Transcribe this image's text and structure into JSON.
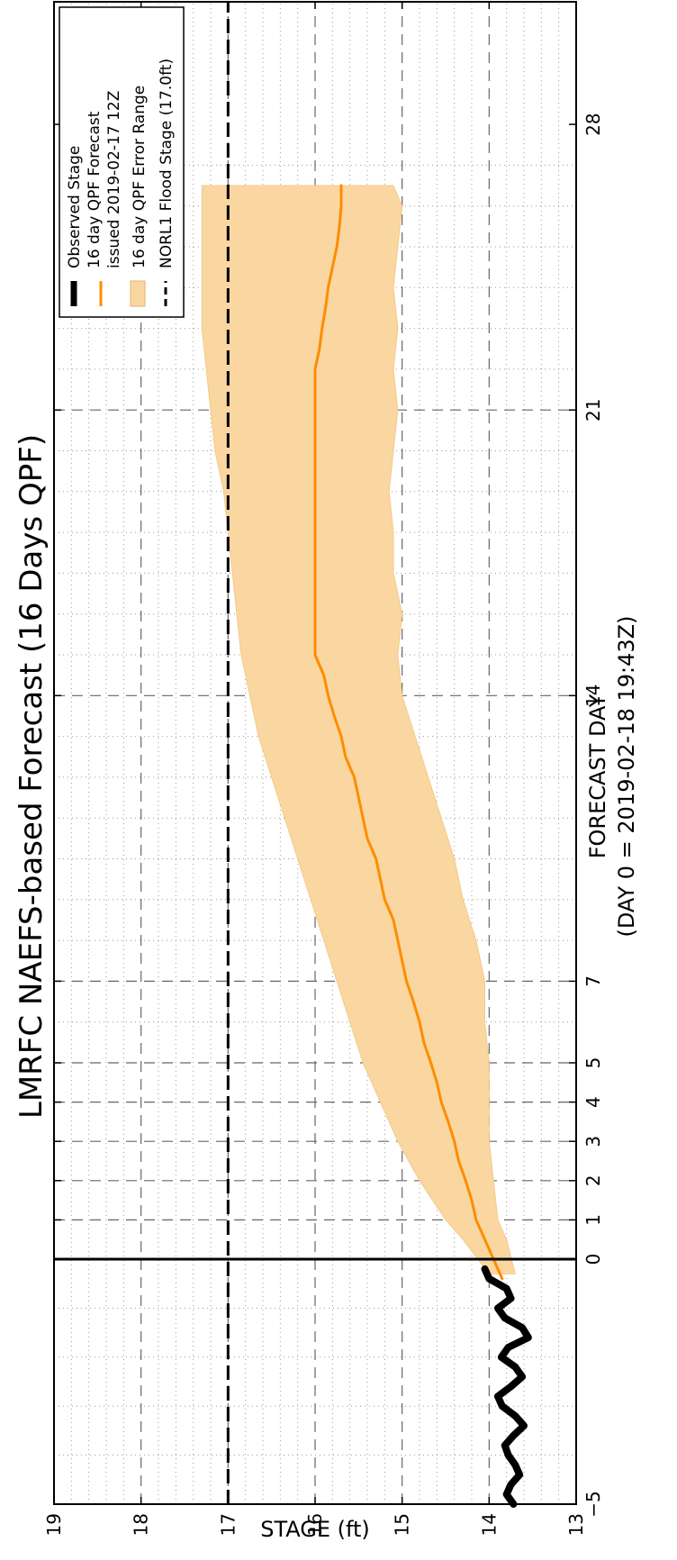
{
  "chart_data": {
    "type": "line",
    "title": "LMRFC NAEFS-based Forecast (16 Days QPF)",
    "xlabel": "FORECAST DAY",
    "xlabel_sub": "(DAY 0 = 2019-02-18 19:43Z)",
    "ylabel": "STAGE (ft)",
    "xlim": [
      -5,
      28
    ],
    "ylim": [
      13,
      19
    ],
    "x_ticks": [
      -5,
      0,
      1,
      2,
      3,
      4,
      5,
      7,
      14,
      21,
      28
    ],
    "x_tick_labels": [
      "−5",
      "0",
      "1",
      "2",
      "3",
      "4",
      "5",
      "7",
      "14",
      "21",
      "28"
    ],
    "y_ticks": [
      13,
      14,
      15,
      16,
      17,
      18,
      19
    ],
    "y_tick_labels": [
      "13",
      "14",
      "15",
      "16",
      "17",
      "18",
      "19"
    ],
    "x_scale": "piecewise: days -5 to 5 wide spacing, 5 to 28 compressed",
    "grid": true,
    "legend_position": "top-right",
    "legend": [
      {
        "label": "Observed Stage",
        "color": "#000000",
        "style": "thick-line"
      },
      {
        "label": "16 day QPF Forecast",
        "label2": "issued 2019-02-17 12Z",
        "color": "#ff8c00",
        "style": "line"
      },
      {
        "label": "16 day QPF Error Range",
        "color": "#fad7a0",
        "style": "patch"
      },
      {
        "label": "NORL1 Flood Stage (17.0ft)",
        "color": "#000000",
        "style": "dashed"
      }
    ],
    "flood_stage": 17.0,
    "series": [
      {
        "name": "Observed Stage",
        "color": "#000000",
        "x": [
          -5.0,
          -4.8,
          -4.6,
          -4.4,
          -4.2,
          -4.0,
          -3.8,
          -3.6,
          -3.4,
          -3.2,
          -3.0,
          -2.8,
          -2.6,
          -2.4,
          -2.2,
          -2.0,
          -1.8,
          -1.6,
          -1.4,
          -1.2,
          -1.0,
          -0.8,
          -0.6,
          -0.4,
          -0.2
        ],
        "values": [
          13.72,
          13.8,
          13.75,
          13.65,
          13.7,
          13.78,
          13.82,
          13.72,
          13.6,
          13.7,
          13.85,
          13.9,
          13.75,
          13.62,
          13.7,
          13.86,
          13.78,
          13.55,
          13.62,
          13.82,
          13.9,
          13.75,
          13.8,
          14.0,
          14.05
        ]
      },
      {
        "name": "16 day QPF Forecast issued 2019-02-17 12Z",
        "color": "#ff8c00",
        "x": [
          -0.4,
          0.0,
          0.5,
          1.0,
          1.5,
          2.0,
          2.5,
          3.0,
          3.5,
          4.0,
          4.5,
          5.0,
          5.5,
          6.0,
          6.5,
          7.0,
          7.5,
          8.0,
          8.5,
          9.0,
          9.5,
          10.0,
          10.5,
          11.0,
          11.5,
          12.0,
          12.5,
          13.0,
          13.5,
          14.0,
          14.5,
          15.0,
          16.0,
          17.0,
          18.0,
          19.0,
          20.0,
          21.0,
          22.0,
          22.5,
          23.0,
          23.5,
          24.0,
          24.5,
          25.0,
          25.5,
          26.0,
          26.5
        ],
        "values": [
          13.85,
          13.95,
          14.05,
          14.15,
          14.2,
          14.27,
          14.35,
          14.4,
          14.47,
          14.55,
          14.6,
          14.67,
          14.75,
          14.8,
          14.87,
          14.95,
          15.0,
          15.05,
          15.1,
          15.2,
          15.25,
          15.3,
          15.4,
          15.45,
          15.5,
          15.55,
          15.65,
          15.7,
          15.78,
          15.85,
          15.9,
          16.0,
          16.0,
          16.0,
          16.0,
          16.0,
          16.0,
          16.0,
          16.0,
          15.95,
          15.92,
          15.88,
          15.85,
          15.8,
          15.75,
          15.72,
          15.7,
          15.7
        ]
      },
      {
        "name": "16 day QPF Error Range",
        "color": "#fad7a0",
        "x": [
          -0.3,
          0.5,
          1.0,
          2.0,
          3.0,
          4.0,
          5.0,
          6.0,
          7.0,
          8.0,
          9.0,
          10.0,
          11.0,
          12.0,
          13.0,
          14.0,
          15.0,
          16.0,
          17.0,
          18.0,
          19.0,
          20.0,
          21.0,
          22.0,
          23.0,
          24.0,
          25.0,
          26.0,
          26.5
        ],
        "upper": [
          14.0,
          14.3,
          14.5,
          14.8,
          15.05,
          15.25,
          15.45,
          15.6,
          15.75,
          15.9,
          16.05,
          16.2,
          16.35,
          16.5,
          16.65,
          16.75,
          16.85,
          16.9,
          16.95,
          17.0,
          17.05,
          17.15,
          17.2,
          17.25,
          17.3,
          17.3,
          17.3,
          17.3,
          17.3
        ],
        "lower": [
          13.7,
          13.8,
          13.9,
          13.95,
          14.0,
          14.0,
          14.0,
          14.05,
          14.05,
          14.15,
          14.3,
          14.4,
          14.55,
          14.7,
          14.85,
          15.0,
          15.05,
          15.0,
          15.1,
          15.1,
          15.15,
          15.1,
          15.05,
          15.1,
          15.05,
          15.1,
          15.05,
          15.0,
          15.1
        ]
      }
    ]
  }
}
